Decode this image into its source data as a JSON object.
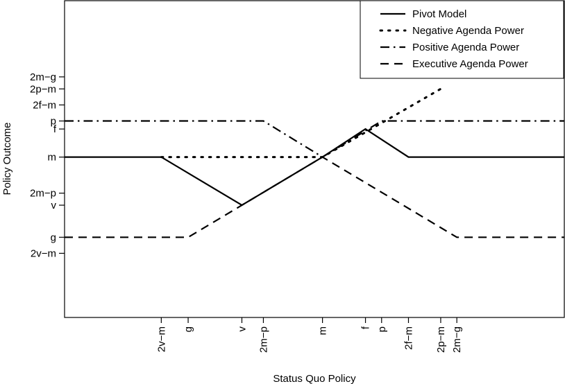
{
  "chart_data": {
    "type": "line",
    "xlabel": "Status Quo Policy",
    "ylabel": "Policy Outcome",
    "x_ticks": [
      {
        "label": "2v−m",
        "value": -2
      },
      {
        "label": "g",
        "value": -1.5
      },
      {
        "label": "v",
        "value": -0.5
      },
      {
        "label": "2m−p",
        "value": -0.1
      },
      {
        "label": "m",
        "value": 1
      },
      {
        "label": "f",
        "value": 1.8
      },
      {
        "label": "p",
        "value": 2.1
      },
      {
        "label": "2f−m",
        "value": 2.6
      },
      {
        "label": "2p−m",
        "value": 3.2
      },
      {
        "label": "2m−g",
        "value": 3.5
      }
    ],
    "y_ticks": [
      {
        "label": "2m−g",
        "value": 2.5
      },
      {
        "label": "2p−m",
        "value": 2.2
      },
      {
        "label": "2f−m",
        "value": 1.8
      },
      {
        "label": "p",
        "value": 1.4
      },
      {
        "label": "f",
        "value": 1.2
      },
      {
        "label": "m",
        "value": 0.5
      },
      {
        "label": "2m−p",
        "value": -0.4
      },
      {
        "label": "v",
        "value": -0.7
      },
      {
        "label": "g",
        "value": -1.5
      },
      {
        "label": "2v−m",
        "value": -1.9
      }
    ],
    "xlim": [
      -3.8,
      5.5
    ],
    "ylim": [
      -3.5,
      4.4
    ],
    "legend_position": "top-right",
    "series": [
      {
        "name": "Pivot Model",
        "style": "solid",
        "points": [
          [
            -3.8,
            0.5
          ],
          [
            -2,
            0.5
          ],
          [
            -0.5,
            -0.7
          ],
          [
            1,
            0.5
          ],
          [
            1.8,
            1.2
          ],
          [
            2.6,
            0.5
          ],
          [
            5.5,
            0.5
          ]
        ]
      },
      {
        "name": "Negative Agenda Power",
        "style": "dotted",
        "points": [
          [
            -2,
            0.5
          ],
          [
            1,
            0.5
          ],
          [
            3.2,
            2.2
          ]
        ]
      },
      {
        "name": "Positive Agenda Power",
        "style": "dotdash",
        "points": [
          [
            -3.8,
            1.4
          ],
          [
            -0.1,
            1.4
          ],
          [
            1,
            0.5
          ],
          [
            2.1,
            1.4
          ],
          [
            5.5,
            1.4
          ]
        ]
      },
      {
        "name": "Executive Agenda Power",
        "style": "dashed",
        "points": [
          [
            -3.8,
            -1.5
          ],
          [
            -1.5,
            -1.5
          ],
          [
            1,
            0.5
          ],
          [
            3.5,
            -1.5
          ],
          [
            5.5,
            -1.5
          ]
        ]
      }
    ]
  }
}
